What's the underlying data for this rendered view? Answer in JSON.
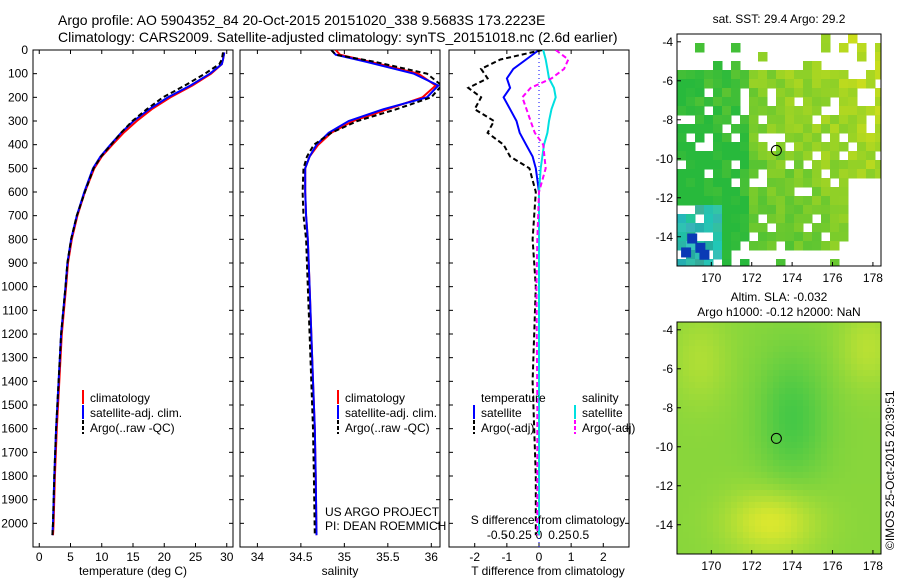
{
  "header": {
    "line1": "Argo profile: AO 5904352_84 20-Oct-2015 20151020_338 9.5683S 173.2223E",
    "line2": "Climatology: CARS2009. Satellite-adjusted climatology: synTS_20151018.nc (2.6d earlier)"
  },
  "colors": {
    "climatology": "#ff0000",
    "satellite": "#0000ff",
    "argo": "#000000",
    "sal_satellite": "#00e0e0",
    "sal_argo": "#ff00ff"
  },
  "chart_data": [
    {
      "type": "line",
      "id": "temperature",
      "xlabel": "temperature (deg C)",
      "ylabel": "",
      "xlim": [
        -1,
        31
      ],
      "ylim": [
        2100,
        0
      ],
      "xticks": [
        "0",
        "5",
        "10",
        "15",
        "20",
        "25",
        "30"
      ],
      "yticks": [
        "0",
        "100",
        "200",
        "300",
        "400",
        "500",
        "600",
        "700",
        "800",
        "900",
        "1000",
        "1100",
        "1200",
        "1300",
        "1400",
        "1500",
        "1600",
        "1700",
        "1800",
        "1900",
        "2000"
      ],
      "legend": [
        "climatology",
        "satellite-adj. clim.",
        "Argo(..raw -QC)"
      ],
      "series": [
        {
          "name": "climatology",
          "x": [
            29.6,
            29.4,
            29.2,
            27.5,
            24.5,
            21,
            18,
            15.6,
            13.5,
            11.7,
            10,
            8.8,
            7.3,
            6.1,
            5.2,
            4.6,
            4.3,
            3.6,
            3.2,
            2.8,
            2.5,
            2.3,
            2.2
          ],
          "y": [
            10,
            40,
            60,
            100,
            150,
            200,
            250,
            300,
            350,
            400,
            450,
            500,
            600,
            700,
            800,
            900,
            1000,
            1200,
            1400,
            1600,
            1800,
            2000,
            2050
          ]
        },
        {
          "name": "satellite-adj. clim.",
          "x": [
            29.6,
            29.4,
            29.2,
            27.3,
            24.2,
            20.6,
            17.6,
            15.1,
            13.1,
            11.4,
            9.8,
            8.6,
            7.2,
            6.0,
            5.1,
            4.5,
            4.2,
            3.5,
            3.1,
            2.7,
            2.4,
            2.2,
            2.1
          ],
          "y": [
            10,
            40,
            60,
            100,
            150,
            200,
            250,
            300,
            350,
            400,
            450,
            500,
            600,
            700,
            800,
            900,
            1000,
            1200,
            1400,
            1600,
            1800,
            2000,
            2050
          ]
        },
        {
          "name": "Argo(..raw -QC)",
          "x": [
            29.4,
            29.2,
            28.8,
            26.5,
            23.3,
            19.8,
            17.2,
            14.9,
            13.1,
            11.5,
            9.9,
            8.7,
            7.3,
            6.0,
            5.1,
            4.5,
            4.2,
            3.5,
            3.1,
            2.7,
            2.4,
            2.2,
            2.1
          ],
          "y": [
            10,
            40,
            60,
            100,
            150,
            200,
            250,
            300,
            350,
            400,
            450,
            500,
            600,
            700,
            800,
            900,
            1000,
            1200,
            1400,
            1600,
            1800,
            2000,
            2050
          ]
        }
      ]
    },
    {
      "type": "line",
      "id": "salinity",
      "xlabel": "salinity",
      "xlim": [
        33.8,
        36.1
      ],
      "ylim": [
        2100,
        0
      ],
      "xticks": [
        "34",
        "34.5",
        "35",
        "35.5",
        "36"
      ],
      "legend": [
        "climatology",
        "satellite-adj. clim.",
        "Argo(..raw -QC)"
      ],
      "series": [
        {
          "name": "climatology",
          "x": [
            34.9,
            34.95,
            35.3,
            35.85,
            36.05,
            35.9,
            35.5,
            35.1,
            34.85,
            34.7,
            34.6,
            34.55,
            34.55,
            34.56,
            34.58,
            34.6,
            34.62,
            34.64,
            34.66,
            34.67,
            34.68
          ],
          "y": [
            0,
            20,
            50,
            100,
            150,
            200,
            250,
            300,
            350,
            400,
            450,
            500,
            600,
            700,
            800,
            1000,
            1200,
            1400,
            1600,
            1800,
            2050
          ]
        },
        {
          "name": "satellite-adj. clim.",
          "x": [
            34.85,
            34.9,
            35.25,
            35.8,
            36.08,
            35.95,
            35.45,
            35.05,
            34.82,
            34.68,
            34.6,
            34.55,
            34.55,
            34.56,
            34.58,
            34.6,
            34.62,
            34.64,
            34.66,
            34.67,
            34.68
          ],
          "y": [
            0,
            20,
            50,
            100,
            150,
            200,
            250,
            300,
            350,
            400,
            450,
            500,
            600,
            700,
            800,
            1000,
            1200,
            1400,
            1600,
            1800,
            2050
          ]
        },
        {
          "name": "Argo(..raw -QC)",
          "x": [
            34.85,
            34.9,
            35.35,
            35.95,
            36.12,
            36.0,
            35.6,
            35.15,
            34.85,
            34.65,
            34.57,
            34.53,
            34.52,
            34.53,
            34.56,
            34.58,
            34.6,
            34.62,
            34.64,
            34.65,
            34.66
          ],
          "y": [
            0,
            20,
            50,
            100,
            150,
            200,
            250,
            300,
            350,
            400,
            450,
            500,
            600,
            700,
            800,
            1000,
            1200,
            1400,
            1600,
            1800,
            2050
          ]
        }
      ]
    },
    {
      "type": "line",
      "id": "differences",
      "xlabel": "T difference from climatology",
      "top_label": "S difference from climatology",
      "xlim": [
        -2.8,
        2.8
      ],
      "ylim": [
        2100,
        0
      ],
      "xticks": [
        "-2",
        "-1",
        "0",
        "1",
        "2"
      ],
      "sticks": [
        "-0.5",
        "-0.25",
        "0",
        "0.25",
        "0.5"
      ],
      "legend_headers": [
        "temperature",
        "salinity"
      ],
      "legend": [
        "satellite",
        "Argo(-adj)",
        "satellite",
        "Argo(-adj)"
      ],
      "series": [
        {
          "name": "T satellite",
          "x": [
            0,
            -0.4,
            -0.8,
            -1.0,
            -0.9,
            -1.1,
            -0.9,
            -0.7,
            -0.6,
            -0.4,
            -0.2,
            -0.1,
            0,
            0,
            0,
            0,
            0,
            0
          ],
          "y": [
            0,
            40,
            80,
            120,
            160,
            200,
            250,
            300,
            350,
            400,
            450,
            500,
            600,
            800,
            1000,
            1400,
            1800,
            2050
          ]
        },
        {
          "name": "T Argo(-adj)",
          "x": [
            0.1,
            -1.2,
            -1.8,
            -1.6,
            -2.2,
            -1.8,
            -2.0,
            -1.4,
            -1.6,
            -1.1,
            -0.9,
            -0.3,
            -0.1,
            -0.2,
            -0.1,
            -0.2,
            -0.1,
            -0.1
          ],
          "y": [
            0,
            40,
            80,
            120,
            160,
            200,
            250,
            300,
            350,
            400,
            450,
            500,
            600,
            800,
            1000,
            1400,
            1800,
            2050
          ]
        },
        {
          "name": "S satellite",
          "x": [
            0.05,
            0.08,
            0.1,
            0.12,
            0.18,
            0.2,
            0.15,
            0.12,
            0.1,
            0.06,
            0.02,
            0,
            0,
            0,
            0,
            0
          ],
          "y": [
            0,
            40,
            80,
            120,
            160,
            200,
            250,
            300,
            350,
            400,
            500,
            600,
            800,
            1000,
            1500,
            2050
          ]
        },
        {
          "name": "S Argo(-adj)",
          "x": [
            0.2,
            0.35,
            0.3,
            0.15,
            -0.1,
            -0.2,
            -0.15,
            -0.1,
            -0.05,
            0.05,
            0.08,
            0.0,
            -0.02,
            -0.03,
            -0.02,
            -0.02
          ],
          "y": [
            0,
            40,
            80,
            120,
            160,
            200,
            250,
            300,
            350,
            400,
            500,
            600,
            800,
            1000,
            1500,
            2050
          ]
        }
      ]
    },
    {
      "type": "heatmap",
      "id": "sst-map",
      "title": "sat. SST: 29.4 Argo: 29.2",
      "xlim": [
        168.3,
        178.4
      ],
      "ylim": [
        -15.5,
        -3.6
      ],
      "xticks": [
        "170",
        "172",
        "174",
        "176",
        "178"
      ],
      "yticks": [
        "-4",
        "-6",
        "-8",
        "-10",
        "-12",
        "-14"
      ],
      "argo_position": {
        "lon": 173.22,
        "lat": -9.57
      }
    },
    {
      "type": "heatmap",
      "id": "sla-map",
      "title_line1": "Altim. SLA: -0.032",
      "title_line2": "Argo h1000: -0.12 h2000: NaN",
      "xlim": [
        168.3,
        178.4
      ],
      "ylim": [
        -15.5,
        -3.6
      ],
      "xticks": [
        "170",
        "172",
        "174",
        "176",
        "178"
      ],
      "yticks": [
        "-4",
        "-6",
        "-8",
        "-10",
        "-12",
        "-14"
      ],
      "argo_position": {
        "lon": 173.22,
        "lat": -9.57
      }
    }
  ],
  "annotations": {
    "project_line1": "US ARGO PROJECT",
    "project_line2": "PI: DEAN ROEMMICH",
    "timestamp": "©IMOS 25-Oct-2015 20:39:51"
  }
}
